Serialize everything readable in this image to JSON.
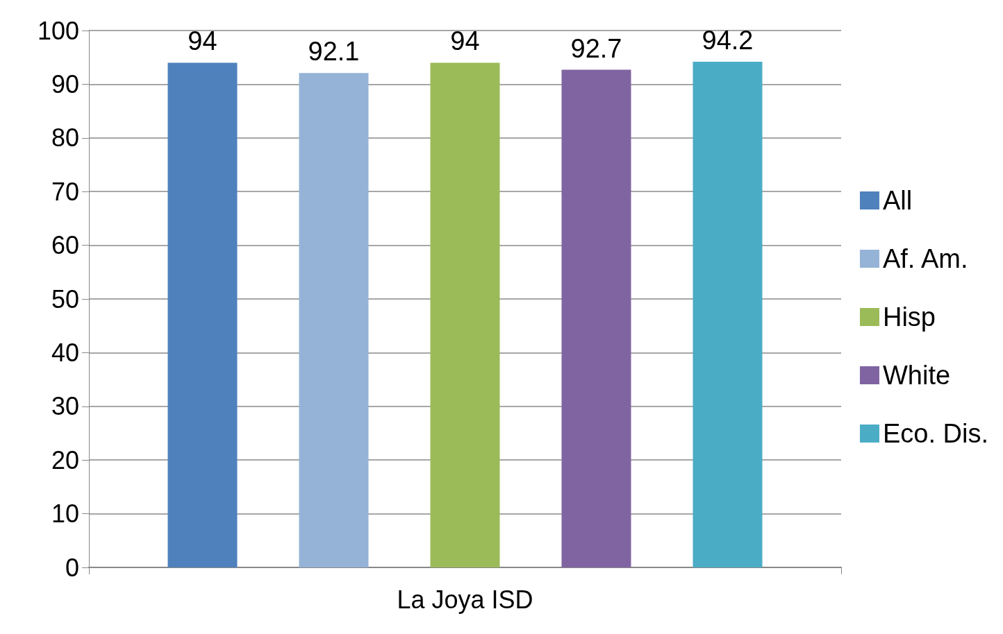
{
  "chart_data": {
    "type": "bar",
    "categories": [
      "La Joya ISD"
    ],
    "series": [
      {
        "name": "All",
        "color": "#4f81bd",
        "values": [
          94
        ]
      },
      {
        "name": "Af. Am.",
        "color": "#95b3d7",
        "values": [
          92.1
        ]
      },
      {
        "name": "Hisp",
        "color": "#9bbb59",
        "values": [
          94
        ]
      },
      {
        "name": "White",
        "color": "#8064a2",
        "values": [
          92.7
        ]
      },
      {
        "name": "Eco. Dis.",
        "color": "#4bacc6",
        "values": [
          94.2
        ]
      }
    ],
    "ylim": [
      0,
      100
    ],
    "yticks": [
      0,
      10,
      20,
      30,
      40,
      50,
      60,
      70,
      80,
      90,
      100
    ],
    "grid": true,
    "legend": "right",
    "data_labels": true
  }
}
